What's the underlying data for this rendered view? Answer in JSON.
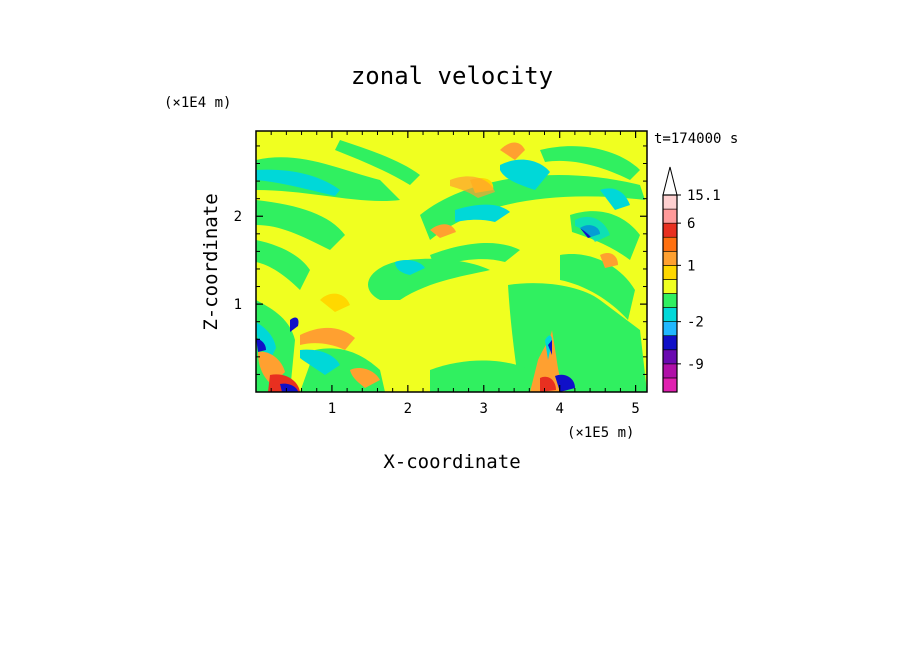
{
  "chart_data": {
    "type": "heatmap",
    "title": "zonal velocity",
    "xlabel": "X-coordinate",
    "ylabel": "Z-coordinate",
    "x_unit": "(×1E5 m)",
    "y_unit": "(×1E4 m)",
    "time_label": "t=174000 s",
    "xlim": [
      0,
      5.15
    ],
    "ylim": [
      0,
      2.97
    ],
    "x_ticks": [
      "1",
      "2",
      "3",
      "4",
      "5"
    ],
    "x_tick_values": [
      1,
      2,
      3,
      4,
      5
    ],
    "y_ticks": [
      "1",
      "2"
    ],
    "y_tick_values": [
      1,
      2
    ],
    "grid": false,
    "colorbar": {
      "placement": "right",
      "extend_max": true,
      "levels_colors": [
        {
          "level": -12,
          "color": "#e020b0"
        },
        {
          "level": -9,
          "color": "#b010a8"
        },
        {
          "level": -6,
          "color": "#6a0ab0"
        },
        {
          "level": -4,
          "color": "#1010c8"
        },
        {
          "level": -2,
          "color": "#20b8ff"
        },
        {
          "level": -1,
          "color": "#00d8d8"
        },
        {
          "level": 0,
          "color": "#30f060"
        },
        {
          "level": 0.5,
          "color": "#f0ff20"
        },
        {
          "level": 1,
          "color": "#ffd800"
        },
        {
          "level": 2,
          "color": "#ffa030"
        },
        {
          "level": 4,
          "color": "#ff7010"
        },
        {
          "level": 6,
          "color": "#e83020"
        },
        {
          "level": 10,
          "color": "#ff9a9a"
        },
        {
          "level": 15.1,
          "color": "#ffd0d0"
        }
      ],
      "labels": [
        "15.1",
        "6",
        "1",
        "-2",
        "-9"
      ]
    }
  }
}
